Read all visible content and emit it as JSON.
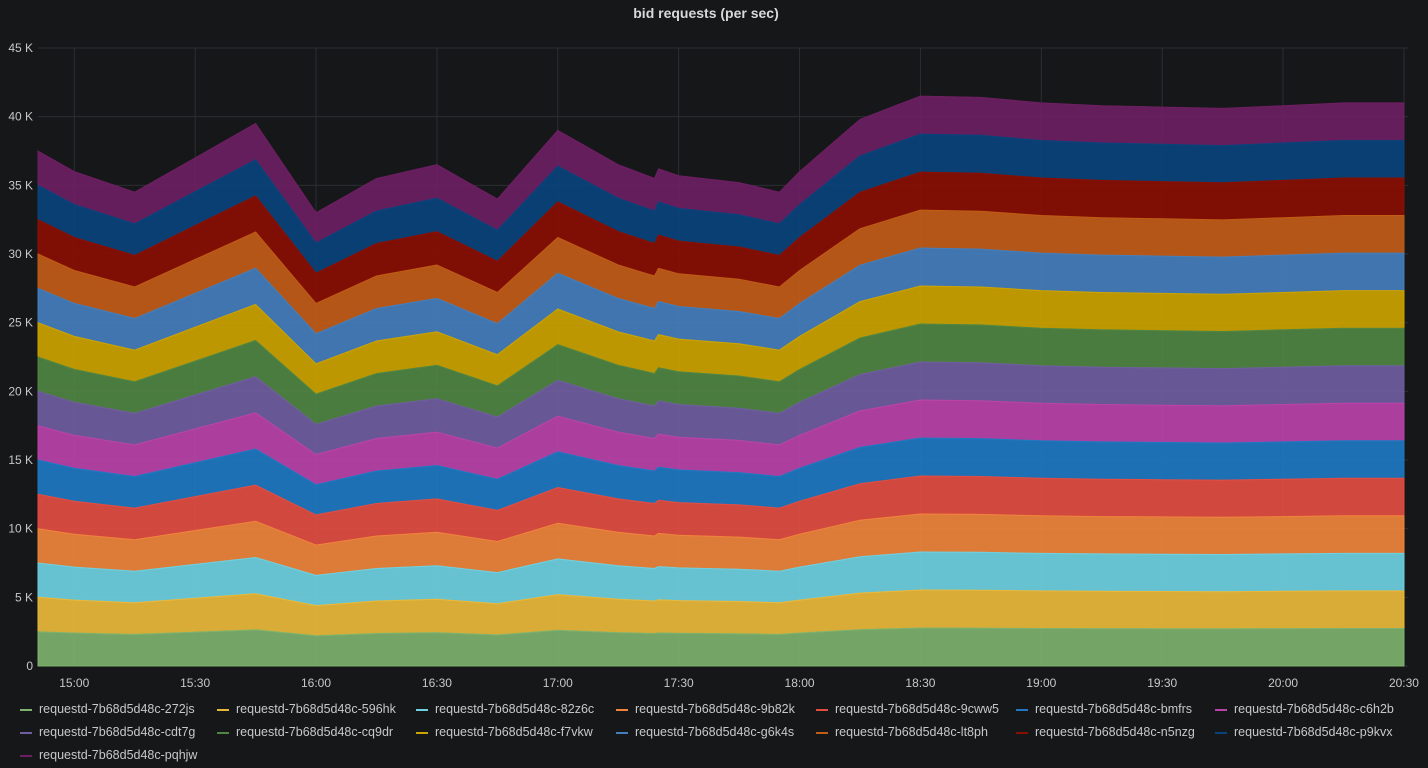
{
  "panel": {
    "title": "bid requests (per sec)"
  },
  "chart_data": {
    "type": "area",
    "stacked": true,
    "title": "bid requests (per sec)",
    "xlabel": "",
    "ylabel": "",
    "ylim": [
      0,
      45000
    ],
    "grid": true,
    "legend_position": "bottom",
    "y_ticks": [
      "0",
      "5 K",
      "10 K",
      "15 K",
      "20 K",
      "25 K",
      "30 K",
      "35 K",
      "40 K",
      "45 K"
    ],
    "x_ticks": [
      "15:00",
      "15:30",
      "16:00",
      "16:30",
      "17:00",
      "17:30",
      "18:00",
      "18:30",
      "19:00",
      "19:30",
      "20:00",
      "20:30"
    ],
    "x": [
      "14:51",
      "15:00",
      "15:15",
      "15:30",
      "15:45",
      "16:00",
      "16:15",
      "16:30",
      "16:45",
      "17:00",
      "17:15",
      "17:24",
      "17:25",
      "17:30",
      "17:45",
      "17:55",
      "18:00",
      "18:15",
      "18:30",
      "18:45",
      "19:00",
      "19:15",
      "19:30",
      "19:45",
      "20:00",
      "20:15",
      "20:30"
    ],
    "total": [
      37500,
      36000,
      34500,
      37000,
      39500,
      33000,
      35500,
      36500,
      34000,
      39000,
      36500,
      35500,
      36200,
      35700,
      35200,
      34500,
      36000,
      39800,
      41500,
      41400,
      41000,
      40800,
      40700,
      40600,
      40800,
      41000,
      41000
    ],
    "series": [
      {
        "name": "requestd-7b68d5d48c-272js",
        "color": "#7eb26d"
      },
      {
        "name": "requestd-7b68d5d48c-596hk",
        "color": "#eab839"
      },
      {
        "name": "requestd-7b68d5d48c-82z6c",
        "color": "#6ed0e0"
      },
      {
        "name": "requestd-7b68d5d48c-9b82k",
        "color": "#ef843c"
      },
      {
        "name": "requestd-7b68d5d48c-9cww5",
        "color": "#e24d42"
      },
      {
        "name": "requestd-7b68d5d48c-bmfrs",
        "color": "#1f78c1"
      },
      {
        "name": "requestd-7b68d5d48c-c6h2b",
        "color": "#ba43a9"
      },
      {
        "name": "requestd-7b68d5d48c-cdt7g",
        "color": "#705da0"
      },
      {
        "name": "requestd-7b68d5d48c-cq9dr",
        "color": "#508642"
      },
      {
        "name": "requestd-7b68d5d48c-f7vkw",
        "color": "#cca300"
      },
      {
        "name": "requestd-7b68d5d48c-g6k4s",
        "color": "#447ebc"
      },
      {
        "name": "requestd-7b68d5d48c-lt8ph",
        "color": "#c15c17"
      },
      {
        "name": "requestd-7b68d5d48c-n5nzg",
        "color": "#890f02"
      },
      {
        "name": "requestd-7b68d5d48c-p9kvx",
        "color": "#0a437c"
      },
      {
        "name": "requestd-7b68d5d48c-pqhjw",
        "color": "#6d1f62"
      }
    ]
  }
}
